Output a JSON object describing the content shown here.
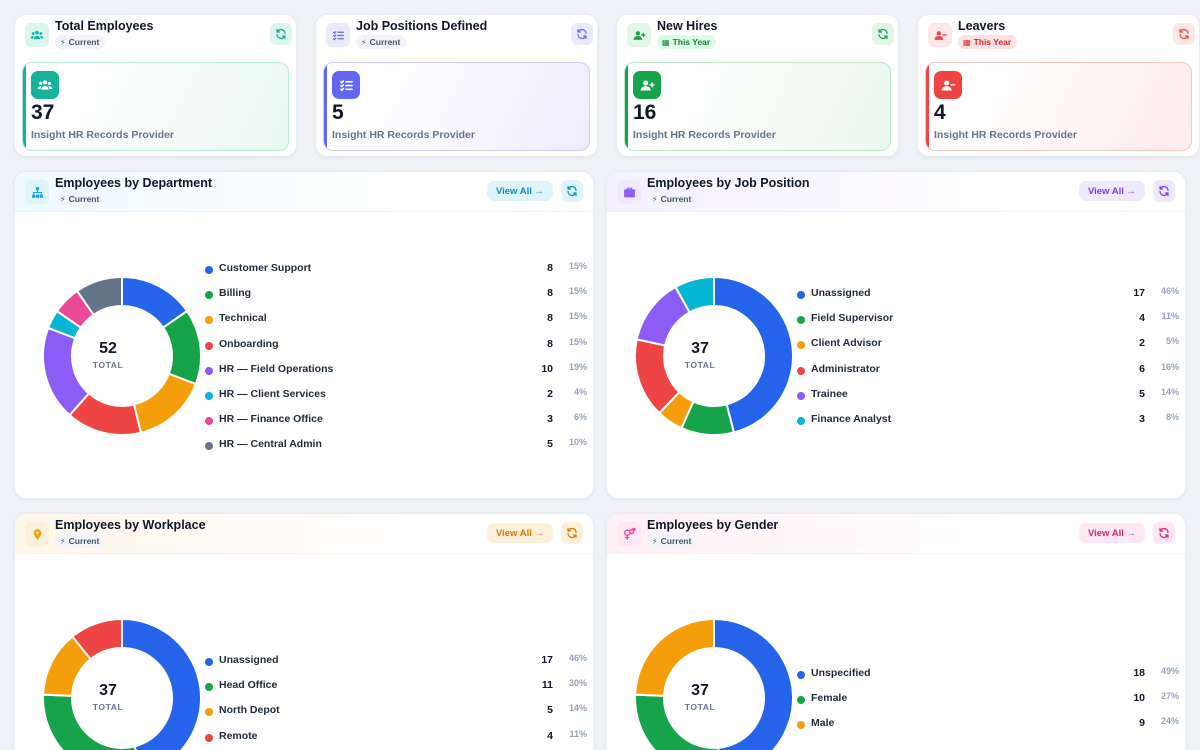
{
  "colors": {
    "blue": "#2563eb",
    "green": "#16a34a",
    "orange": "#f59e0b",
    "red": "#ef4444",
    "purple": "#8b5cf6",
    "cyan": "#06b6d4",
    "pink": "#ec4899",
    "slate": "#64748b"
  },
  "kpis": [
    {
      "title": "Total Employees",
      "badge": "Current",
      "badge_icon": "bolt-icon",
      "value": "37",
      "sub": "Insight HR Records Provider",
      "icon": "users-icon"
    },
    {
      "title": "Job Positions Defined",
      "badge": "Current",
      "badge_icon": "bolt-icon",
      "value": "5",
      "sub": "Insight HR Records Provider",
      "icon": "list-check-icon"
    },
    {
      "title": "New Hires",
      "badge": "This Year",
      "badge_icon": "calendar-icon",
      "value": "16",
      "sub": "Insight HR Records Provider",
      "icon": "user-plus-icon"
    },
    {
      "title": "Leavers",
      "badge": "This Year",
      "badge_icon": "calendar-icon",
      "value": "4",
      "sub": "Insight HR Records Provider",
      "icon": "user-minus-icon"
    }
  ],
  "panels": {
    "department": {
      "title": "Employees by Department",
      "badge": "Current",
      "view_all": "View All →",
      "total": "52",
      "total_label": "TOTAL",
      "items": [
        {
          "name": "Customer Support",
          "count": "8",
          "pct": "15%",
          "color": "#2563eb"
        },
        {
          "name": "Billing",
          "count": "8",
          "pct": "15%",
          "color": "#16a34a"
        },
        {
          "name": "Technical",
          "count": "8",
          "pct": "15%",
          "color": "#f59e0b"
        },
        {
          "name": "Onboarding",
          "count": "8",
          "pct": "15%",
          "color": "#ef4444"
        },
        {
          "name": "HR — Field Operations",
          "count": "10",
          "pct": "19%",
          "color": "#8b5cf6"
        },
        {
          "name": "HR — Client Services",
          "count": "2",
          "pct": "4%",
          "color": "#06b6d4"
        },
        {
          "name": "HR — Finance Office",
          "count": "3",
          "pct": "6%",
          "color": "#ec4899"
        },
        {
          "name": "HR — Central Admin",
          "count": "5",
          "pct": "10%",
          "color": "#64748b"
        }
      ]
    },
    "position": {
      "title": "Employees by Job Position",
      "badge": "Current",
      "view_all": "View All →",
      "total": "37",
      "total_label": "TOTAL",
      "items": [
        {
          "name": "Unassigned",
          "count": "17",
          "pct": "46%",
          "color": "#2563eb"
        },
        {
          "name": "Field Supervisor",
          "count": "4",
          "pct": "11%",
          "color": "#16a34a"
        },
        {
          "name": "Client Advisor",
          "count": "2",
          "pct": "5%",
          "color": "#f59e0b"
        },
        {
          "name": "Administrator",
          "count": "6",
          "pct": "16%",
          "color": "#ef4444"
        },
        {
          "name": "Trainee",
          "count": "5",
          "pct": "14%",
          "color": "#8b5cf6"
        },
        {
          "name": "Finance Analyst",
          "count": "3",
          "pct": "8%",
          "color": "#06b6d4"
        }
      ]
    },
    "workplace": {
      "title": "Employees by Workplace",
      "badge": "Current",
      "view_all": "View All →",
      "total": "37",
      "total_label": "TOTAL",
      "items": [
        {
          "name": "Unassigned",
          "count": "17",
          "pct": "46%",
          "color": "#2563eb"
        },
        {
          "name": "Head Office",
          "count": "11",
          "pct": "30%",
          "color": "#16a34a"
        },
        {
          "name": "North Depot",
          "count": "5",
          "pct": "14%",
          "color": "#f59e0b"
        },
        {
          "name": "Remote",
          "count": "4",
          "pct": "11%",
          "color": "#ef4444"
        }
      ]
    },
    "gender": {
      "title": "Employees by Gender",
      "badge": "Current",
      "view_all": "View All →",
      "total": "37",
      "total_label": "TOTAL",
      "items": [
        {
          "name": "Unspecified",
          "count": "18",
          "pct": "49%",
          "color": "#2563eb"
        },
        {
          "name": "Female",
          "count": "10",
          "pct": "27%",
          "color": "#16a34a"
        },
        {
          "name": "Male",
          "count": "9",
          "pct": "24%",
          "color": "#f59e0b"
        }
      ]
    }
  }
}
